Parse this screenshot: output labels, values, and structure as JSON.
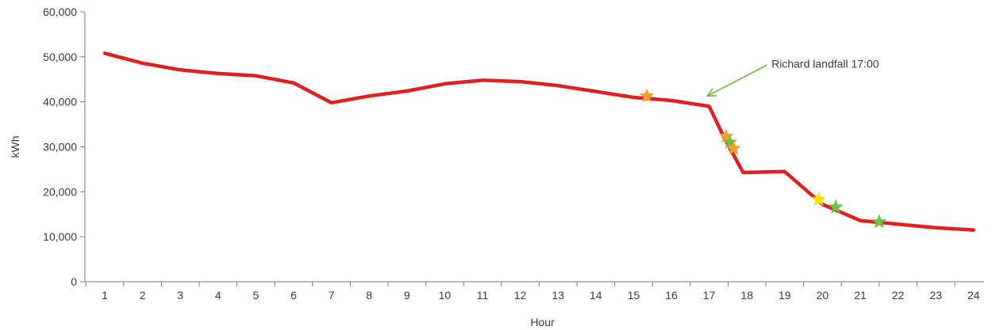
{
  "chart_data": {
    "type": "line",
    "xlabel": "Hour",
    "ylabel": "kWh",
    "xlim": [
      1,
      24
    ],
    "ylim": [
      0,
      60000
    ],
    "x_ticks": [
      1,
      2,
      3,
      4,
      5,
      6,
      7,
      8,
      9,
      10,
      11,
      12,
      13,
      14,
      15,
      16,
      17,
      18,
      19,
      20,
      21,
      22,
      23,
      24
    ],
    "y_ticks": [
      0,
      10000,
      20000,
      30000,
      40000,
      50000,
      60000
    ],
    "y_tick_labels": [
      "0",
      "10,000",
      "20,000",
      "30,000",
      "40,000",
      "50,000",
      "60,000"
    ],
    "grid": false,
    "series": [
      {
        "color": "#e02020",
        "points": [
          {
            "x": 1,
            "y": 50800
          },
          {
            "x": 2,
            "y": 48600
          },
          {
            "x": 3,
            "y": 47100
          },
          {
            "x": 4,
            "y": 46300
          },
          {
            "x": 5,
            "y": 45800
          },
          {
            "x": 6,
            "y": 44200
          },
          {
            "x": 7,
            "y": 39800
          },
          {
            "x": 8,
            "y": 41300
          },
          {
            "x": 9,
            "y": 42400
          },
          {
            "x": 10,
            "y": 44000
          },
          {
            "x": 11,
            "y": 44800
          },
          {
            "x": 12,
            "y": 44500
          },
          {
            "x": 13,
            "y": 43600
          },
          {
            "x": 14,
            "y": 42300
          },
          {
            "x": 15,
            "y": 41000
          },
          {
            "x": 16,
            "y": 40300
          },
          {
            "x": 17,
            "y": 39000
          },
          {
            "x": 18,
            "y": 24300
          },
          {
            "x": 19,
            "y": 24500
          },
          {
            "x": 20,
            "y": 17200
          },
          {
            "x": 21,
            "y": 13600
          },
          {
            "x": 22,
            "y": 12800
          },
          {
            "x": 23,
            "y": 12000
          },
          {
            "x": 24,
            "y": 11500
          }
        ],
        "extra_vertices": [
          {
            "x": 17.4,
            "y": 32000
          },
          {
            "x": 17.9,
            "y": 24300
          }
        ]
      }
    ],
    "markers": [
      {
        "x": 15.35,
        "y": 41300,
        "color": "#f0a030"
      },
      {
        "x": 17.45,
        "y": 32300,
        "color": "#f0a030"
      },
      {
        "x": 17.55,
        "y": 31000,
        "color": "#70c040"
      },
      {
        "x": 17.65,
        "y": 29600,
        "color": "#f0a030"
      },
      {
        "x": 19.9,
        "y": 18300,
        "color": "#f7e000"
      },
      {
        "x": 20.35,
        "y": 16600,
        "color": "#70c040"
      },
      {
        "x": 21.5,
        "y": 13300,
        "color": "#70c040"
      }
    ],
    "annotation": {
      "text": "Richard landfall 17:00",
      "arrow_color": "#6cbf3c",
      "text_at": {
        "x": 18.65,
        "y": 48500
      },
      "arrow_tip": {
        "x": 16.95,
        "y": 41300
      }
    }
  }
}
